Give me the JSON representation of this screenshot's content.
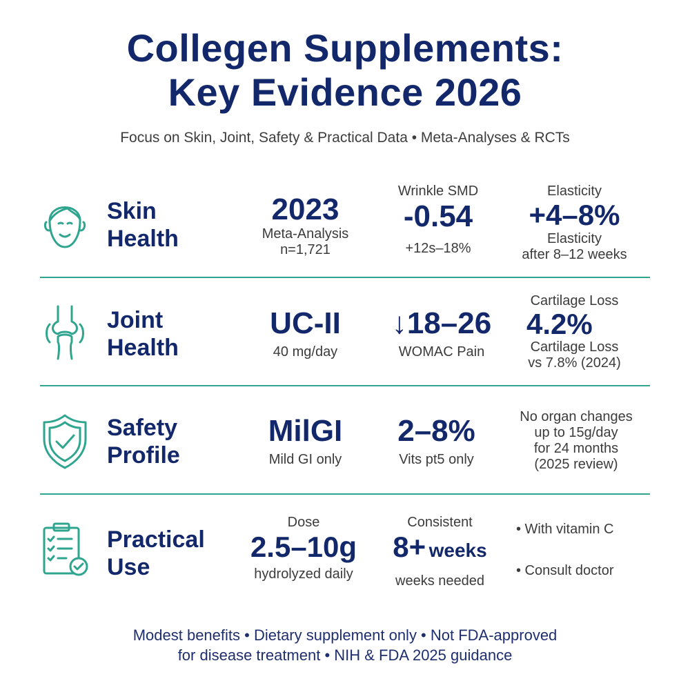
{
  "title": {
    "line1": "Collegen Supplements:",
    "line2": "Key Evidence 2026"
  },
  "subtitle": "Focus on Skin, Joint, Safety & Practical Data • Meta-Analyses & RCTs",
  "colors": {
    "navy": "#13286b",
    "teal": "#2fa58f",
    "gray": "#3b3b3b"
  },
  "rows": {
    "skin": {
      "icon": "face-icon",
      "cat_line1": "Skin",
      "cat_line2": "Health",
      "c1": {
        "big": "2023",
        "sub1": "Meta-Analysis",
        "sub2": "n=1,721"
      },
      "c2": {
        "top": "Wrinkle SMD",
        "big": "-0.54",
        "sub": "+12s–18%"
      },
      "c3": {
        "top": "Elasticity",
        "big": "+4–8%",
        "sub1": "Elasticity",
        "sub2": "after 8–12 weeks"
      }
    },
    "joint": {
      "icon": "knee-joint-icon",
      "cat_line1": "Joint",
      "cat_line2": "Health",
      "c1": {
        "big": "UC-II",
        "sub": "40 mg/day"
      },
      "c2": {
        "big": "↓18–26",
        "sub": "WOMAC Pain"
      },
      "c3": {
        "top": "Cartilage Loss",
        "big": "4.2%",
        "sub1": "Cartilage Loss",
        "sub2": "vs 7.8% (2024)"
      }
    },
    "safety": {
      "icon": "shield-check-icon",
      "cat_line1": "Safety",
      "cat_line2": "Profile",
      "c1": {
        "big": "MilGI",
        "sub": "Mild GI only"
      },
      "c2": {
        "big": "2–8%",
        "sub": "Vits pt5 only"
      },
      "c3": {
        "l1": "No organ changes",
        "l2": "up to 15g/day",
        "l3": "for 24 months",
        "l4": "(2025 review)"
      }
    },
    "practical": {
      "icon": "checklist-icon",
      "cat_line1": "Practical",
      "cat_line2": "Use",
      "c1": {
        "top": "Dose",
        "big": "2.5–10g",
        "sub": "hydrolyzed daily"
      },
      "c2": {
        "top": "Consistent",
        "big": "8+",
        "big_suffix": "weeks",
        "sub": "weeks needed"
      },
      "c3": {
        "b1": "• With vitamin C",
        "b2": "• Consult doctor"
      }
    }
  },
  "footer": {
    "line1": "Modest benefits • Dietary supplement only • Not FDA-approved",
    "line2": "for disease treatment • NIH & FDA 2025 guidance"
  }
}
